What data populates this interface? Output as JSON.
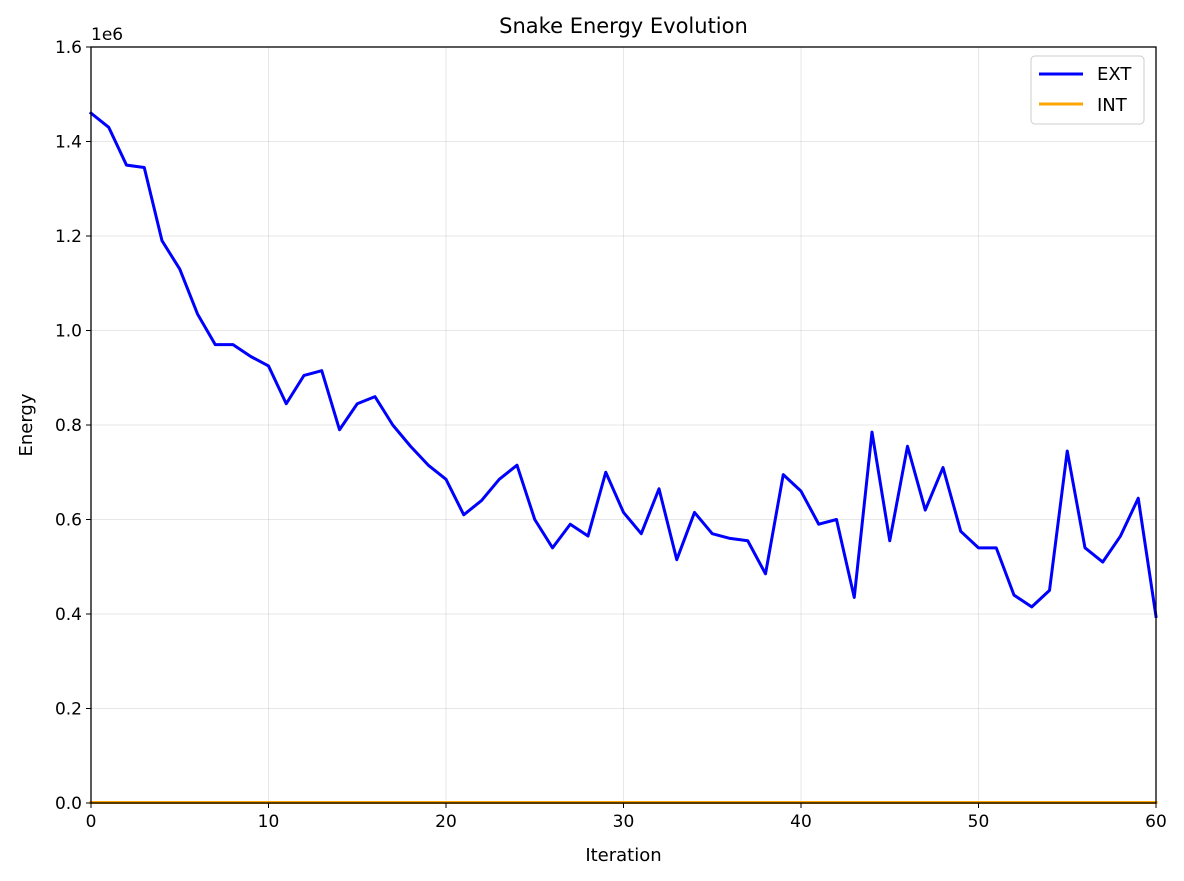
{
  "chart_data": {
    "type": "line",
    "title": "Snake Energy Evolution",
    "xlabel": "Iteration",
    "ylabel": "Energy",
    "y_scale_label": "1e6",
    "xlim": [
      0,
      60
    ],
    "ylim": [
      0,
      1.6
    ],
    "x_ticks": [
      "0",
      "10",
      "20",
      "30",
      "40",
      "50",
      "60"
    ],
    "y_ticks": [
      "0.0",
      "0.2",
      "0.4",
      "0.6",
      "0.8",
      "1.0",
      "1.2",
      "1.4",
      "1.6"
    ],
    "grid": true,
    "legend_position": "top-right",
    "series": [
      {
        "name": "EXT",
        "color": "#0000ff",
        "x": [
          0,
          1,
          2,
          3,
          4,
          5,
          6,
          7,
          8,
          9,
          10,
          11,
          12,
          13,
          14,
          15,
          16,
          17,
          18,
          19,
          20,
          21,
          22,
          23,
          24,
          25,
          26,
          27,
          28,
          29,
          30,
          31,
          32,
          33,
          34,
          35,
          36,
          37,
          38,
          39,
          40,
          41,
          42,
          43,
          44,
          45,
          46,
          47,
          48,
          49,
          50,
          51,
          52,
          53,
          54,
          55,
          56,
          57,
          58,
          59,
          60
        ],
        "values": [
          1.46,
          1.43,
          1.35,
          1.345,
          1.19,
          1.13,
          1.035,
          0.97,
          0.97,
          0.945,
          0.925,
          0.845,
          0.905,
          0.915,
          0.79,
          0.845,
          0.86,
          0.8,
          0.755,
          0.715,
          0.685,
          0.61,
          0.64,
          0.685,
          0.715,
          0.6,
          0.54,
          0.59,
          0.565,
          0.7,
          0.615,
          0.57,
          0.665,
          0.515,
          0.615,
          0.57,
          0.56,
          0.555,
          0.485,
          0.695,
          0.66,
          0.59,
          0.6,
          0.435,
          0.785,
          0.555,
          0.755,
          0.62,
          0.71,
          0.575,
          0.54,
          0.54,
          0.44,
          0.415,
          0.45,
          0.745,
          0.54,
          0.51,
          0.565,
          0.645,
          0.395
        ]
      },
      {
        "name": "INT",
        "color": "#ffa500",
        "x": [
          0,
          60
        ],
        "values": [
          0.001,
          0.001
        ]
      }
    ]
  }
}
